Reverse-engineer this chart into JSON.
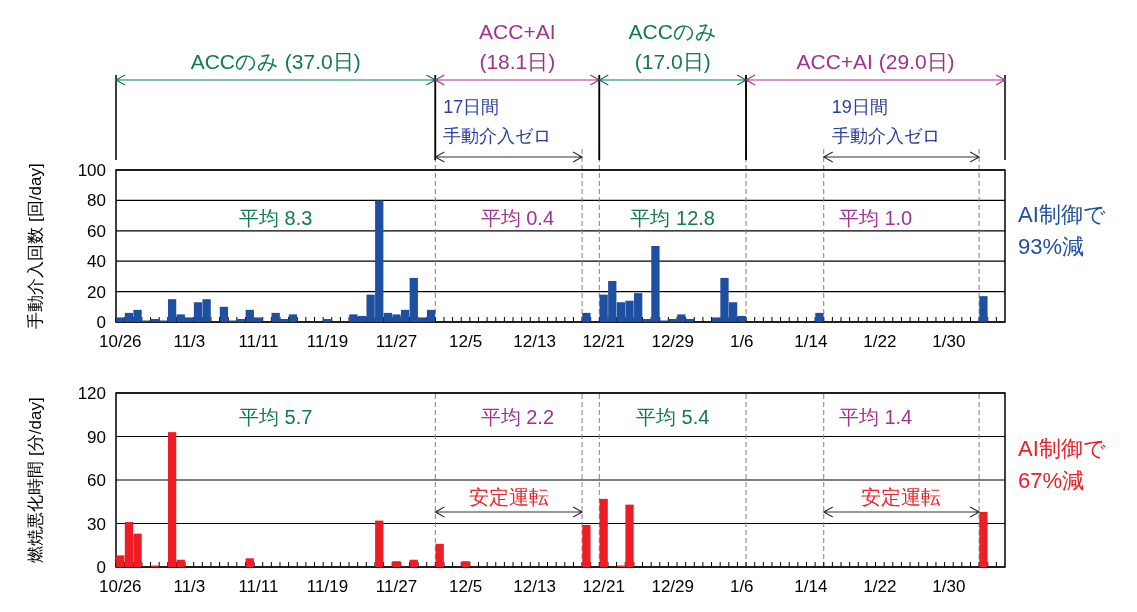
{
  "chart_data": [
    {
      "type": "bar",
      "ylabel": "手動介入回数 [回/day]",
      "categories": [
        "10/26",
        null,
        null,
        null,
        null,
        null,
        null,
        null,
        "11/3",
        null,
        null,
        null,
        null,
        null,
        null,
        null,
        "11/11",
        null,
        null,
        null,
        null,
        null,
        null,
        null,
        "11/19",
        null,
        null,
        null,
        null,
        null,
        null,
        null,
        "11/27",
        null,
        null,
        null,
        null,
        null,
        null,
        null,
        "12/5",
        null,
        null,
        null,
        null,
        null,
        null,
        null,
        "12/13",
        null,
        null,
        null,
        null,
        null,
        null,
        null,
        "12/21",
        null,
        null,
        null,
        null,
        null,
        null,
        null,
        "12/29",
        null,
        null,
        null,
        null,
        null,
        null,
        null,
        "1/6",
        null,
        null,
        null,
        null,
        null,
        null,
        null,
        "1/14",
        null,
        null,
        null,
        null,
        null,
        null,
        null,
        "1/22",
        null,
        null,
        null,
        null,
        null,
        null,
        null,
        "1/30",
        null,
        null,
        null,
        null,
        null,
        null
      ],
      "ylim": [
        0,
        100
      ],
      "yticks": [
        0,
        20,
        40,
        60,
        80,
        100
      ],
      "grid": "y",
      "series": [
        {
          "color": "#1f4fa0",
          "values": [
            3,
            6,
            8,
            1,
            2,
            1,
            15,
            5,
            3,
            13,
            15,
            0,
            10,
            1,
            2,
            8,
            3,
            0,
            6,
            2,
            5,
            0,
            0,
            0,
            2,
            0,
            0,
            5,
            4,
            18,
            80,
            6,
            5,
            8,
            29,
            3,
            8,
            0,
            0,
            0,
            0,
            0,
            0,
            0,
            0,
            0,
            0,
            0,
            0,
            0,
            0,
            0,
            0,
            0,
            6,
            0,
            18,
            27,
            13,
            14,
            19,
            2,
            50,
            1,
            2,
            5,
            2,
            0,
            0,
            3,
            29,
            13,
            4,
            0,
            0,
            0,
            0,
            0,
            0,
            0,
            0,
            6,
            0,
            0,
            0,
            0,
            0,
            0,
            0,
            0,
            0,
            0,
            0,
            0,
            0,
            0,
            0,
            0,
            0,
            0,
            17,
            0,
            0
          ]
        }
      ],
      "annotations": [
        "ACCのみ (37.0日)",
        "ACC+AI\n(18.1日)",
        "ACCのみ\n(17.0日)",
        "ACC+AI (29.0日)",
        "17日間",
        "手動介入ゼロ",
        "19日間",
        "手動介入ゼロ",
        "平均 8.3",
        "平均 0.4",
        "平均 12.8",
        "平均 1.0",
        "AI制御で\n93%減"
      ]
    },
    {
      "type": "bar",
      "ylabel": "燃焼悪化時間 [分/day]",
      "categories": [
        "10/26",
        null,
        null,
        null,
        null,
        null,
        null,
        null,
        "11/3",
        null,
        null,
        null,
        null,
        null,
        null,
        null,
        "11/11",
        null,
        null,
        null,
        null,
        null,
        null,
        null,
        "11/19",
        null,
        null,
        null,
        null,
        null,
        null,
        null,
        "11/27",
        null,
        null,
        null,
        null,
        null,
        null,
        null,
        "12/5",
        null,
        null,
        null,
        null,
        null,
        null,
        null,
        "12/13",
        null,
        null,
        null,
        null,
        null,
        null,
        null,
        "12/21",
        null,
        null,
        null,
        null,
        null,
        null,
        null,
        "12/29",
        null,
        null,
        null,
        null,
        null,
        null,
        null,
        "1/6",
        null,
        null,
        null,
        null,
        null,
        null,
        null,
        "1/14",
        null,
        null,
        null,
        null,
        null,
        null,
        null,
        "1/22",
        null,
        null,
        null,
        null,
        null,
        null,
        null,
        "1/30",
        null,
        null,
        null,
        null,
        null,
        null
      ],
      "ylim": [
        0,
        120
      ],
      "yticks": [
        0,
        30,
        60,
        90,
        120
      ],
      "grid": "y",
      "series": [
        {
          "color": "#ee1c24",
          "values": [
            8,
            31,
            23,
            0,
            1,
            0,
            93,
            5,
            0,
            0,
            0,
            0,
            0,
            0,
            0,
            6,
            0,
            0,
            0,
            0,
            0,
            0,
            0,
            0,
            0,
            0,
            0,
            0,
            0,
            0,
            32,
            0,
            4,
            0,
            5,
            0,
            0,
            16,
            0,
            0,
            4,
            0,
            0,
            0,
            0,
            0,
            0,
            0,
            0,
            0,
            0,
            0,
            0,
            0,
            29,
            0,
            47,
            0,
            1,
            43,
            0,
            0,
            0,
            0,
            0,
            0,
            0,
            0,
            0,
            0,
            0,
            0,
            0,
            0,
            0,
            0,
            0,
            0,
            0,
            0,
            0,
            0,
            0,
            0,
            0,
            0,
            0,
            0,
            0,
            0,
            0,
            0,
            0,
            0,
            0,
            0,
            0,
            0,
            0,
            0,
            38,
            0,
            0
          ]
        }
      ],
      "annotations": [
        "平均 5.7",
        "平均 2.2",
        "平均 5.4",
        "平均 1.4",
        "安定運転",
        "安定運転",
        "AI制御で\n67%減"
      ]
    }
  ]
}
